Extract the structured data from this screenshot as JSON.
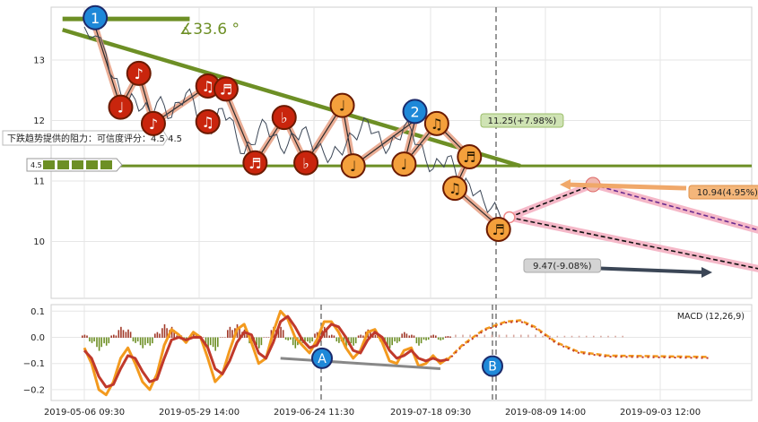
{
  "chart_data": {
    "type": "line",
    "x_ticks": [
      "2019-05-06 09:30",
      "2019-05-29 14:00",
      "2019-06-24 11:30",
      "2019-07-18 09:30",
      "2019-08-09 14:00",
      "2019-09-03 12:00"
    ],
    "price_panel": {
      "y_ticks": [
        "13",
        "12",
        "11",
        "10"
      ],
      "ylim": [
        9.4,
        13.9
      ],
      "price_series": [
        [
          0,
          13.55
        ],
        [
          1.5,
          13.4
        ],
        [
          3,
          13.1
        ],
        [
          4,
          12.7
        ],
        [
          5,
          12.45
        ],
        [
          6,
          12.3
        ],
        [
          7,
          12.35
        ],
        [
          8,
          12.2
        ],
        [
          9,
          12.15
        ],
        [
          10,
          12.3
        ],
        [
          11,
          12.25
        ],
        [
          12,
          12.05
        ],
        [
          13,
          12.3
        ],
        [
          14,
          12.45
        ],
        [
          15,
          12.35
        ],
        [
          16,
          12.0
        ],
        [
          17,
          11.85
        ],
        [
          18,
          11.95
        ],
        [
          19,
          12.2
        ],
        [
          20,
          12.05
        ],
        [
          21,
          11.7
        ],
        [
          22,
          11.45
        ],
        [
          23,
          11.6
        ],
        [
          24,
          11.85
        ],
        [
          25,
          11.95
        ],
        [
          26,
          11.75
        ],
        [
          27,
          11.55
        ],
        [
          28,
          11.6
        ],
        [
          29,
          11.75
        ],
        [
          30,
          11.85
        ],
        [
          31,
          11.7
        ],
        [
          32,
          11.55
        ],
        [
          33,
          11.45
        ],
        [
          34,
          11.4
        ],
        [
          35,
          11.5
        ],
        [
          36,
          11.6
        ],
        [
          37,
          11.75
        ],
        [
          38,
          11.85
        ],
        [
          39,
          12.0
        ],
        [
          40,
          11.8
        ],
        [
          41,
          11.6
        ],
        [
          42,
          11.55
        ],
        [
          43,
          11.7
        ],
        [
          44,
          11.9
        ],
        [
          45,
          11.85
        ],
        [
          46,
          11.6
        ],
        [
          47,
          11.35
        ],
        [
          48,
          11.2
        ],
        [
          49,
          11.3
        ],
        [
          50,
          11.4
        ],
        [
          51,
          11.2
        ],
        [
          52,
          10.9
        ],
        [
          53,
          10.95
        ],
        [
          54,
          10.8
        ],
        [
          55,
          10.65
        ],
        [
          56,
          10.55
        ],
        [
          57,
          10.5
        ],
        [
          58,
          10.4
        ]
      ],
      "support_level": 11.25,
      "resistance_line": [
        [
          -3,
          13.5
        ],
        [
          60,
          11.25
        ]
      ],
      "top_bar": [
        [
          -3,
          13.68
        ],
        [
          14.5,
          13.68
        ]
      ],
      "angle_label": "∡33.6 °",
      "forecast_segments": [
        {
          "from": [
            58.5,
            10.4
          ],
          "to": [
            70,
            10.94
          ]
        },
        {
          "from": [
            58.5,
            10.4
          ],
          "to": [
            96,
            9.47
          ]
        },
        {
          "from": [
            70,
            10.94
          ],
          "to": [
            96,
            10.08
          ]
        }
      ],
      "labels": {
        "target_up": "11.25(+7.98%)",
        "target_mid": "10.94(4.95%)",
        "target_down": "9.47(-9.08%)",
        "annotation": "下跌趋势提供的阻力：可信度评分：4.5",
        "score": "4.5"
      },
      "badges": [
        {
          "type": "number",
          "text": "1",
          "x": 1.5,
          "y": 13.7
        },
        {
          "type": "number",
          "text": "2",
          "x": 45.5,
          "y": 12.15
        },
        {
          "type": "note-red",
          "glyph": "♩",
          "x": 5,
          "y": 12.22
        },
        {
          "type": "note-red",
          "glyph": "♪",
          "x": 7.5,
          "y": 12.78
        },
        {
          "type": "note-red",
          "glyph": "♪",
          "x": 9.5,
          "y": 11.95
        },
        {
          "type": "note-red",
          "glyph": "♫",
          "x": 17,
          "y": 12.57
        },
        {
          "type": "note-red",
          "glyph": "♬",
          "x": 19.5,
          "y": 12.52
        },
        {
          "type": "note-red",
          "glyph": "♫",
          "x": 17,
          "y": 11.98
        },
        {
          "type": "note-red",
          "glyph": "♭",
          "x": 27.5,
          "y": 12.05
        },
        {
          "type": "note-red",
          "glyph": "♬",
          "x": 23.5,
          "y": 11.3
        },
        {
          "type": "note-red",
          "glyph": "♭",
          "x": 30.5,
          "y": 11.3
        },
        {
          "type": "note-orange",
          "glyph": "♩",
          "x": 35.5,
          "y": 12.25
        },
        {
          "type": "note-orange",
          "glyph": "♩",
          "x": 37,
          "y": 11.25
        },
        {
          "type": "note-orange",
          "glyph": "♩",
          "x": 44,
          "y": 11.28
        },
        {
          "type": "note-orange",
          "glyph": "♫",
          "x": 48.5,
          "y": 11.95
        },
        {
          "type": "note-orange",
          "glyph": "♬",
          "x": 53,
          "y": 11.4
        },
        {
          "type": "note-orange",
          "glyph": "♫",
          "x": 51,
          "y": 10.88
        },
        {
          "type": "note-orange",
          "glyph": "♬",
          "x": 57,
          "y": 10.2
        }
      ]
    },
    "macd_panel": {
      "label": "MACD (12,26,9)",
      "y_ticks": [
        "0.1",
        "0.0",
        "−0.1",
        "−0.2"
      ],
      "ylim": [
        -0.24,
        0.13
      ],
      "dif": [
        [
          0,
          -0.04
        ],
        [
          1,
          -0.1
        ],
        [
          2,
          -0.2
        ],
        [
          3,
          -0.22
        ],
        [
          4,
          -0.17
        ],
        [
          5,
          -0.08
        ],
        [
          6,
          -0.04
        ],
        [
          7,
          -0.1
        ],
        [
          8,
          -0.17
        ],
        [
          9,
          -0.2
        ],
        [
          10,
          -0.14
        ],
        [
          11,
          -0.03
        ],
        [
          12,
          0.03
        ],
        [
          13,
          0.01
        ],
        [
          14,
          -0.02
        ],
        [
          15,
          0.02
        ],
        [
          16,
          0.0
        ],
        [
          17,
          -0.08
        ],
        [
          18,
          -0.17
        ],
        [
          19,
          -0.14
        ],
        [
          20,
          -0.05
        ],
        [
          21,
          0.03
        ],
        [
          22,
          0.05
        ],
        [
          23,
          -0.02
        ],
        [
          24,
          -0.1
        ],
        [
          25,
          -0.08
        ],
        [
          26,
          0.02
        ],
        [
          27,
          0.1
        ],
        [
          28,
          0.07
        ],
        [
          29,
          0.0
        ],
        [
          30,
          -0.03
        ],
        [
          31,
          -0.06
        ],
        [
          32,
          -0.01
        ],
        [
          33,
          0.06
        ],
        [
          34,
          0.06
        ],
        [
          35,
          0.02
        ],
        [
          36,
          -0.04
        ],
        [
          37,
          -0.08
        ],
        [
          38,
          -0.05
        ],
        [
          39,
          0.02
        ],
        [
          40,
          0.03
        ],
        [
          41,
          -0.02
        ],
        [
          42,
          -0.09
        ],
        [
          43,
          -0.1
        ],
        [
          44,
          -0.05
        ],
        [
          45,
          -0.04
        ],
        [
          46,
          -0.11
        ],
        [
          47,
          -0.1
        ],
        [
          48,
          -0.07
        ],
        [
          49,
          -0.1
        ],
        [
          50,
          -0.08
        ]
      ],
      "dea": [
        [
          0,
          -0.05
        ],
        [
          1,
          -0.08
        ],
        [
          2,
          -0.15
        ],
        [
          3,
          -0.19
        ],
        [
          4,
          -0.18
        ],
        [
          5,
          -0.12
        ],
        [
          6,
          -0.07
        ],
        [
          7,
          -0.08
        ],
        [
          8,
          -0.13
        ],
        [
          9,
          -0.17
        ],
        [
          10,
          -0.16
        ],
        [
          11,
          -0.08
        ],
        [
          12,
          -0.01
        ],
        [
          13,
          0.0
        ],
        [
          14,
          -0.01
        ],
        [
          15,
          0.0
        ],
        [
          16,
          0.0
        ],
        [
          17,
          -0.04
        ],
        [
          18,
          -0.12
        ],
        [
          19,
          -0.14
        ],
        [
          20,
          -0.09
        ],
        [
          21,
          -0.02
        ],
        [
          22,
          0.02
        ],
        [
          23,
          0.01
        ],
        [
          24,
          -0.06
        ],
        [
          25,
          -0.08
        ],
        [
          26,
          -0.02
        ],
        [
          27,
          0.06
        ],
        [
          28,
          0.08
        ],
        [
          29,
          0.04
        ],
        [
          30,
          -0.01
        ],
        [
          31,
          -0.04
        ],
        [
          32,
          -0.03
        ],
        [
          33,
          0.02
        ],
        [
          34,
          0.05
        ],
        [
          35,
          0.04
        ],
        [
          36,
          0.0
        ],
        [
          37,
          -0.05
        ],
        [
          38,
          -0.06
        ],
        [
          39,
          -0.01
        ],
        [
          40,
          0.02
        ],
        [
          41,
          0.0
        ],
        [
          42,
          -0.05
        ],
        [
          43,
          -0.08
        ],
        [
          44,
          -0.07
        ],
        [
          45,
          -0.05
        ],
        [
          46,
          -0.08
        ],
        [
          47,
          -0.09
        ],
        [
          48,
          -0.08
        ],
        [
          49,
          -0.09
        ],
        [
          50,
          -0.085
        ]
      ],
      "forecast": [
        [
          50,
          -0.085
        ],
        [
          52,
          -0.03
        ],
        [
          55,
          0.03
        ],
        [
          58,
          0.06
        ],
        [
          60,
          0.065
        ],
        [
          62,
          0.04
        ],
        [
          65,
          -0.02
        ],
        [
          68,
          -0.055
        ],
        [
          72,
          -0.07
        ],
        [
          78,
          -0.072
        ],
        [
          86,
          -0.075
        ]
      ],
      "divergence": {
        "point_a": {
          "text": "A",
          "x": 27,
          "y": -0.08
        },
        "point_b": {
          "text": "B",
          "x": 50.3,
          "y": -0.11
        },
        "line": [
          [
            27,
            -0.08
          ],
          [
            49,
            -0.12
          ]
        ]
      }
    }
  }
}
